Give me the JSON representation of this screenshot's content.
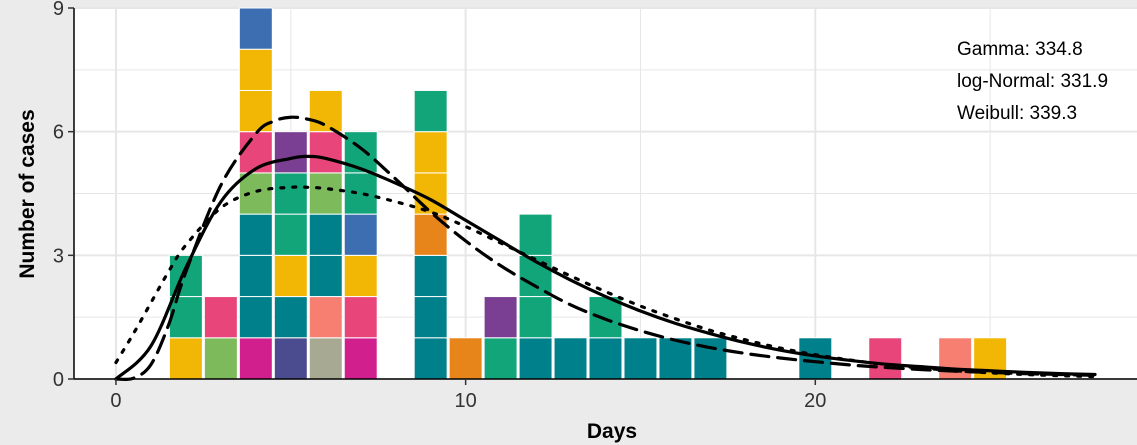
{
  "chart_data": {
    "type": "bar",
    "title": "",
    "xlabel": "Days",
    "ylabel": "Number of cases",
    "xlim": [
      -1.2,
      29.2
    ],
    "ylim": [
      0,
      9
    ],
    "x_ticks": [
      0,
      10,
      20
    ],
    "y_ticks": [
      0,
      3,
      6,
      9
    ],
    "grid": true,
    "colors": {
      "panel": "#ffffff",
      "background": "#ebebeb",
      "grid": "#e6e6e6",
      "axis": "#000000"
    },
    "stacks": [
      {
        "x": 2,
        "segments": [
          {
            "count": 1,
            "color": "#f2b705"
          },
          {
            "count": 2,
            "color": "#12a57a"
          }
        ]
      },
      {
        "x": 3,
        "segments": [
          {
            "count": 1,
            "color": "#7dba5c"
          },
          {
            "count": 1,
            "color": "#e8457a"
          }
        ]
      },
      {
        "x": 4,
        "segments": [
          {
            "count": 1,
            "color": "#d21f8e"
          },
          {
            "count": 3,
            "color": "#00808a"
          },
          {
            "count": 1,
            "color": "#7dba5c"
          },
          {
            "count": 1,
            "color": "#e8457a"
          },
          {
            "count": 2,
            "color": "#f2b705"
          },
          {
            "count": 1,
            "color": "#3d6eb2"
          }
        ]
      },
      {
        "x": 5,
        "segments": [
          {
            "count": 1,
            "color": "#4b4b8f"
          },
          {
            "count": 1,
            "color": "#00808a"
          },
          {
            "count": 1,
            "color": "#f2b705"
          },
          {
            "count": 2,
            "color": "#12a57a"
          },
          {
            "count": 1,
            "color": "#7a3e92"
          }
        ]
      },
      {
        "x": 6,
        "segments": [
          {
            "count": 1,
            "color": "#a7a992"
          },
          {
            "count": 1,
            "color": "#f77f71"
          },
          {
            "count": 2,
            "color": "#00808a"
          },
          {
            "count": 1,
            "color": "#7dba5c"
          },
          {
            "count": 1,
            "color": "#e8457a"
          },
          {
            "count": 1,
            "color": "#f2b705"
          }
        ]
      },
      {
        "x": 7,
        "segments": [
          {
            "count": 1,
            "color": "#d21f8e"
          },
          {
            "count": 1,
            "color": "#e8457a"
          },
          {
            "count": 1,
            "color": "#f2b705"
          },
          {
            "count": 1,
            "color": "#3d6eb2"
          },
          {
            "count": 2,
            "color": "#12a57a"
          }
        ]
      },
      {
        "x": 9,
        "segments": [
          {
            "count": 3,
            "color": "#00808a"
          },
          {
            "count": 1,
            "color": "#e8851a"
          },
          {
            "count": 2,
            "color": "#f2b705"
          },
          {
            "count": 1,
            "color": "#12a57a"
          }
        ]
      },
      {
        "x": 10,
        "segments": [
          {
            "count": 1,
            "color": "#e8851a"
          }
        ]
      },
      {
        "x": 11,
        "segments": [
          {
            "count": 1,
            "color": "#12a57a"
          },
          {
            "count": 1,
            "color": "#7a3e92"
          }
        ]
      },
      {
        "x": 12,
        "segments": [
          {
            "count": 1,
            "color": "#00808a"
          },
          {
            "count": 3,
            "color": "#12a57a"
          }
        ]
      },
      {
        "x": 13,
        "segments": [
          {
            "count": 1,
            "color": "#00808a"
          }
        ]
      },
      {
        "x": 14,
        "segments": [
          {
            "count": 1,
            "color": "#00808a"
          },
          {
            "count": 1,
            "color": "#12a57a"
          }
        ]
      },
      {
        "x": 15,
        "segments": [
          {
            "count": 1,
            "color": "#00808a"
          }
        ]
      },
      {
        "x": 16,
        "segments": [
          {
            "count": 1,
            "color": "#00808a"
          }
        ]
      },
      {
        "x": 17,
        "segments": [
          {
            "count": 1,
            "color": "#00808a"
          }
        ]
      },
      {
        "x": 20,
        "segments": [
          {
            "count": 1,
            "color": "#00808a"
          }
        ]
      },
      {
        "x": 22,
        "segments": [
          {
            "count": 1,
            "color": "#e8457a"
          }
        ]
      },
      {
        "x": 24,
        "segments": [
          {
            "count": 1,
            "color": "#f77f71"
          }
        ]
      },
      {
        "x": 25,
        "segments": [
          {
            "count": 1,
            "color": "#f2b705"
          }
        ]
      }
    ],
    "fits": [
      {
        "style": "solid",
        "x": [
          0,
          1,
          2,
          3,
          4,
          5,
          5.5,
          6,
          7,
          8,
          9,
          10,
          11,
          12,
          13,
          14,
          15,
          16,
          17,
          18,
          19,
          20,
          21,
          22,
          23,
          24,
          25,
          26,
          27,
          28
        ],
        "y": [
          0,
          0.8,
          2.7,
          4.3,
          5.1,
          5.35,
          5.4,
          5.35,
          5.1,
          4.75,
          4.35,
          3.85,
          3.35,
          2.85,
          2.4,
          2.0,
          1.65,
          1.35,
          1.1,
          0.88,
          0.7,
          0.56,
          0.45,
          0.36,
          0.3,
          0.24,
          0.2,
          0.16,
          0.13,
          0.11
        ]
      },
      {
        "style": "dashed",
        "x": [
          0,
          0.5,
          1,
          1.5,
          2,
          3,
          4,
          4.5,
          5,
          5.5,
          6,
          7,
          8,
          9,
          10,
          11,
          12,
          13,
          14,
          15,
          16,
          17,
          18,
          19,
          20,
          21,
          22,
          23,
          24,
          25,
          26,
          27,
          28
        ],
        "y": [
          0,
          0.02,
          0.35,
          1.3,
          2.6,
          4.7,
          5.95,
          6.25,
          6.35,
          6.3,
          6.15,
          5.6,
          4.85,
          4.05,
          3.35,
          2.75,
          2.25,
          1.8,
          1.45,
          1.17,
          0.94,
          0.76,
          0.62,
          0.51,
          0.42,
          0.34,
          0.28,
          0.23,
          0.19,
          0.16,
          0.13,
          0.11,
          0.09
        ]
      },
      {
        "style": "dotted",
        "x": [
          0,
          0.5,
          1,
          1.5,
          2,
          3,
          4,
          5,
          5.5,
          6,
          7,
          8,
          9,
          10,
          11,
          12,
          13,
          14,
          15,
          16,
          17,
          18,
          19,
          20,
          21,
          22,
          23,
          24,
          25,
          26,
          27,
          28
        ],
        "y": [
          0.4,
          1.1,
          1.85,
          2.6,
          3.25,
          4.15,
          4.55,
          4.65,
          4.65,
          4.62,
          4.5,
          4.3,
          4.05,
          3.7,
          3.3,
          2.9,
          2.5,
          2.12,
          1.77,
          1.46,
          1.18,
          0.95,
          0.75,
          0.59,
          0.46,
          0.35,
          0.27,
          0.2,
          0.15,
          0.11,
          0.08,
          0.06
        ]
      }
    ],
    "legend": {
      "position": "top-right",
      "entries": [
        "Gamma: 334.8",
        "log-Normal: 331.9",
        "Weibull: 339.3"
      ]
    }
  }
}
